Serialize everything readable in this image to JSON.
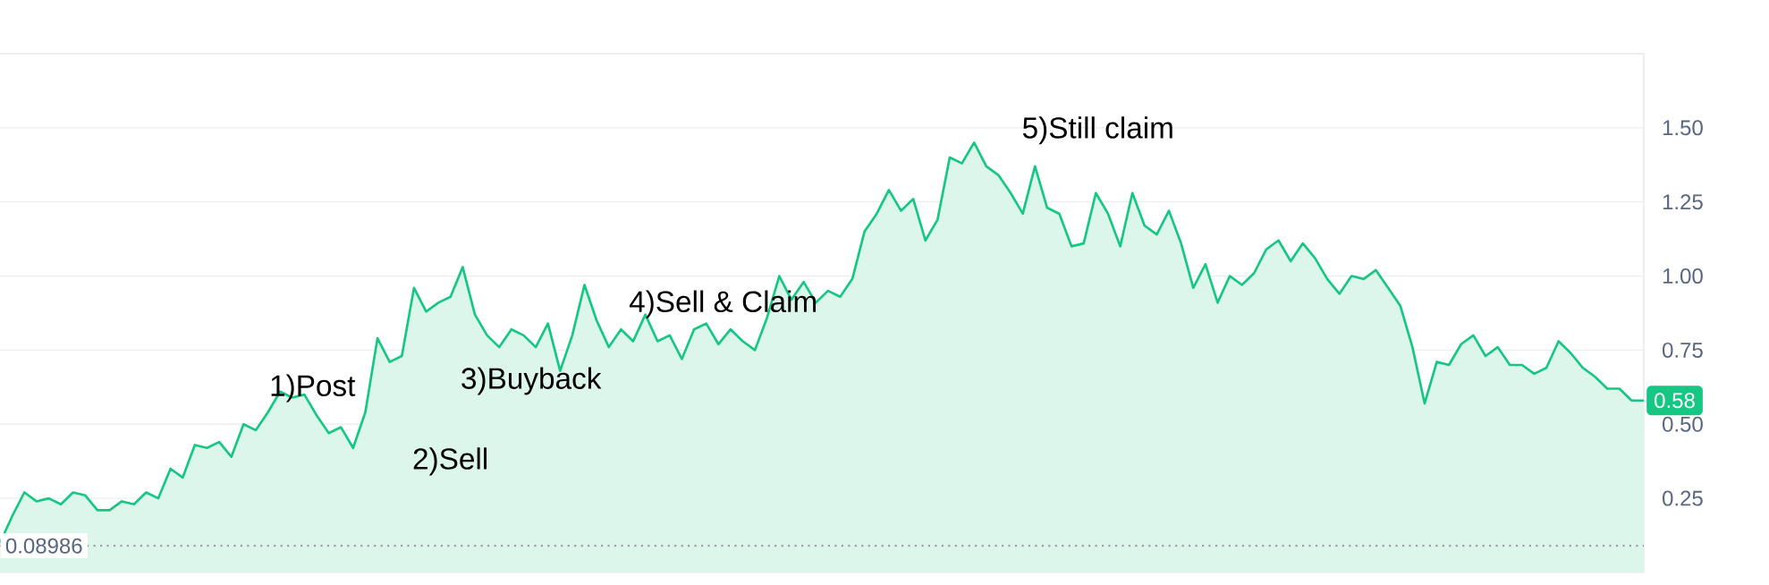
{
  "chart_data": {
    "type": "area",
    "categories": [
      null,
      null,
      null,
      null,
      null,
      null,
      null,
      null,
      null,
      null,
      null,
      null,
      null,
      null,
      null,
      null,
      null,
      null,
      null,
      null,
      null,
      null,
      null,
      null,
      null,
      null,
      null,
      null,
      null,
      null,
      null,
      null,
      null,
      null,
      null,
      null,
      null,
      null,
      null,
      null,
      null,
      null,
      null,
      null,
      null,
      null,
      null,
      null,
      null,
      null,
      null,
      null,
      null,
      null,
      null,
      null,
      null,
      null,
      null,
      null,
      null,
      null,
      null,
      null,
      null,
      null,
      null,
      null,
      null,
      null,
      null,
      null,
      null,
      null,
      null,
      null,
      null,
      null,
      null,
      null,
      null,
      null,
      null,
      null,
      null,
      null,
      null,
      null,
      null,
      null,
      null,
      null,
      null,
      null,
      null,
      null,
      null,
      null,
      null,
      null,
      null,
      null,
      null,
      null,
      null,
      null,
      null,
      null,
      null,
      null,
      null,
      null,
      null,
      null,
      null,
      null,
      null,
      null,
      null,
      null,
      null,
      null,
      null,
      null,
      null,
      null,
      null,
      null,
      null,
      null,
      null,
      null,
      null,
      null,
      null,
      null
    ],
    "series": [
      {
        "color": "#16c784",
        "values": [
          0.1,
          0.19,
          0.27,
          0.24,
          0.25,
          0.23,
          0.27,
          0.26,
          0.21,
          0.21,
          0.24,
          0.23,
          0.27,
          0.25,
          0.35,
          0.32,
          0.43,
          0.42,
          0.44,
          0.39,
          0.5,
          0.48,
          0.54,
          0.61,
          0.59,
          0.6,
          0.53,
          0.47,
          0.49,
          0.42,
          0.54,
          0.79,
          0.71,
          0.73,
          0.96,
          0.88,
          0.91,
          0.93,
          1.03,
          0.87,
          0.8,
          0.76,
          0.82,
          0.8,
          0.76,
          0.84,
          0.68,
          0.8,
          0.97,
          0.85,
          0.76,
          0.82,
          0.78,
          0.87,
          0.78,
          0.8,
          0.72,
          0.82,
          0.84,
          0.77,
          0.82,
          0.78,
          0.75,
          0.86,
          1.0,
          0.92,
          0.98,
          0.91,
          0.95,
          0.93,
          0.99,
          1.15,
          1.21,
          1.29,
          1.22,
          1.26,
          1.12,
          1.19,
          1.4,
          1.38,
          1.45,
          1.37,
          1.34,
          1.28,
          1.21,
          1.37,
          1.23,
          1.21,
          1.1,
          1.11,
          1.28,
          1.21,
          1.1,
          1.28,
          1.17,
          1.14,
          1.22,
          1.11,
          0.96,
          1.04,
          0.91,
          1.0,
          0.97,
          1.01,
          1.09,
          1.12,
          1.05,
          1.11,
          1.06,
          0.99,
          0.94,
          1.0,
          0.99,
          1.02,
          0.96,
          0.9,
          0.76,
          0.57,
          0.71,
          0.7,
          0.77,
          0.8,
          0.73,
          0.76,
          0.7,
          0.7,
          0.67,
          0.69,
          0.78,
          0.74,
          0.69,
          0.66,
          0.62,
          0.62,
          0.58,
          0.58
        ]
      }
    ],
    "ylim": [
      0,
      1.75
    ],
    "yticks": [
      {
        "value": 0,
        "label": null
      },
      {
        "value": 0.25,
        "label": "0.25"
      },
      {
        "value": 0.5,
        "label": "0.50"
      },
      {
        "value": 0.75,
        "label": "0.75"
      },
      {
        "value": 1,
        "label": "1.00"
      },
      {
        "value": 1.25,
        "label": "1.25"
      },
      {
        "value": 1.5,
        "label": "1.50"
      }
    ],
    "tick_labels": "y",
    "grid": "y",
    "ref_lines": [
      {
        "axis": "y",
        "value": 0.08986,
        "label": "0.08986",
        "color": "#9aa0a6",
        "line_style": "dotted"
      }
    ],
    "annotations": [
      "1)Post",
      "2)Sell",
      "3)Buyback",
      "4)Sell & Claim",
      "5)Still claim",
      {
        "text": "0.58",
        "y": 0.58
      }
    ]
  }
}
